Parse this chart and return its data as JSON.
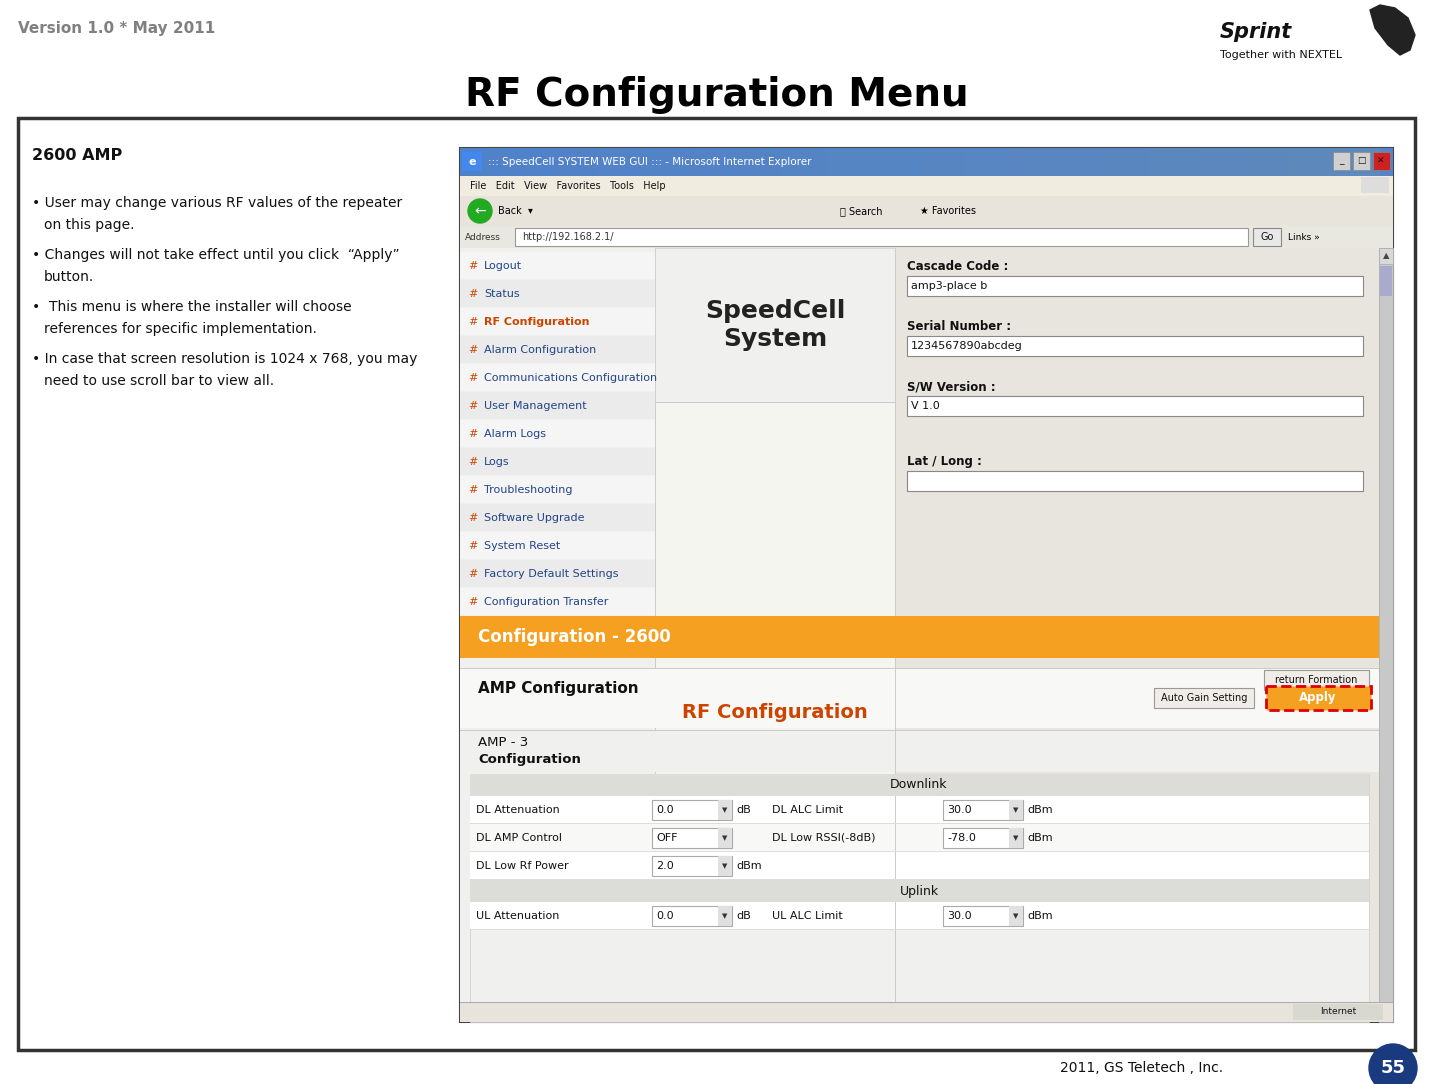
{
  "version_text": "Version 1.0 * May 2011",
  "sprint_text": "Sprint",
  "nextel_text": "Together with NEXTEL",
  "title": "RF Configuration Menu",
  "page_num": "55",
  "copyright_text": "2011, GS Teletech , Inc.",
  "section_title": "2600 AMP",
  "bg_color": "#ffffff",
  "border_color": "#333333",
  "header_gray": "#808080",
  "title_color": "#000000",
  "bullet1a": "• User may change various RF values of the repeater",
  "bullet1b": "on this page.",
  "bullet2a": "• Changes will not take effect until you click  “Apply”",
  "bullet2b": "button.",
  "bullet3a": "•  This menu is where the installer will choose",
  "bullet3b": "references for specific implementation.",
  "bullet4a": "• In case that screen resolution is 1024 x 768, you may",
  "bullet4b": "need to use scroll bar to view all.",
  "menu_items": [
    "Logout",
    "Status",
    "RF Configuration",
    "Alarm Configuration",
    "Communications Configuration",
    "User Management",
    "Alarm Logs",
    "Logs",
    "Troubleshooting",
    "Software Upgrade",
    "System Reset",
    "Factory Default Settings",
    "Configuration Transfer"
  ],
  "cascade_code": "amp3-place b",
  "serial_number": "1234567890abcdeg",
  "sw_version": "V 1.0",
  "config_2600": "Configuration - 2600",
  "amp_config": "AMP Configuration",
  "amp3": "AMP - 3",
  "configuration": "Configuration",
  "downlink": "Downlink",
  "uplink": "Uplink",
  "dl_fields_left": [
    [
      "DL Attenuation",
      "0.0",
      "dB"
    ],
    [
      "DL AMP Control",
      "OFF",
      ""
    ],
    [
      "DL Low Rf Power",
      "2.0",
      "dBm"
    ]
  ],
  "dl_fields_right": [
    [
      "DL ALC Limit",
      "30.0",
      "dBm"
    ],
    [
      "DL Low RSSI(-8dB)",
      "-78.0",
      "dBm"
    ]
  ],
  "ul_fields_left": [
    [
      "UL Attenuation",
      "0.0",
      "dB"
    ]
  ],
  "ul_fields_right": [
    [
      "UL ALC Limit",
      "30.0",
      "dBm"
    ]
  ]
}
